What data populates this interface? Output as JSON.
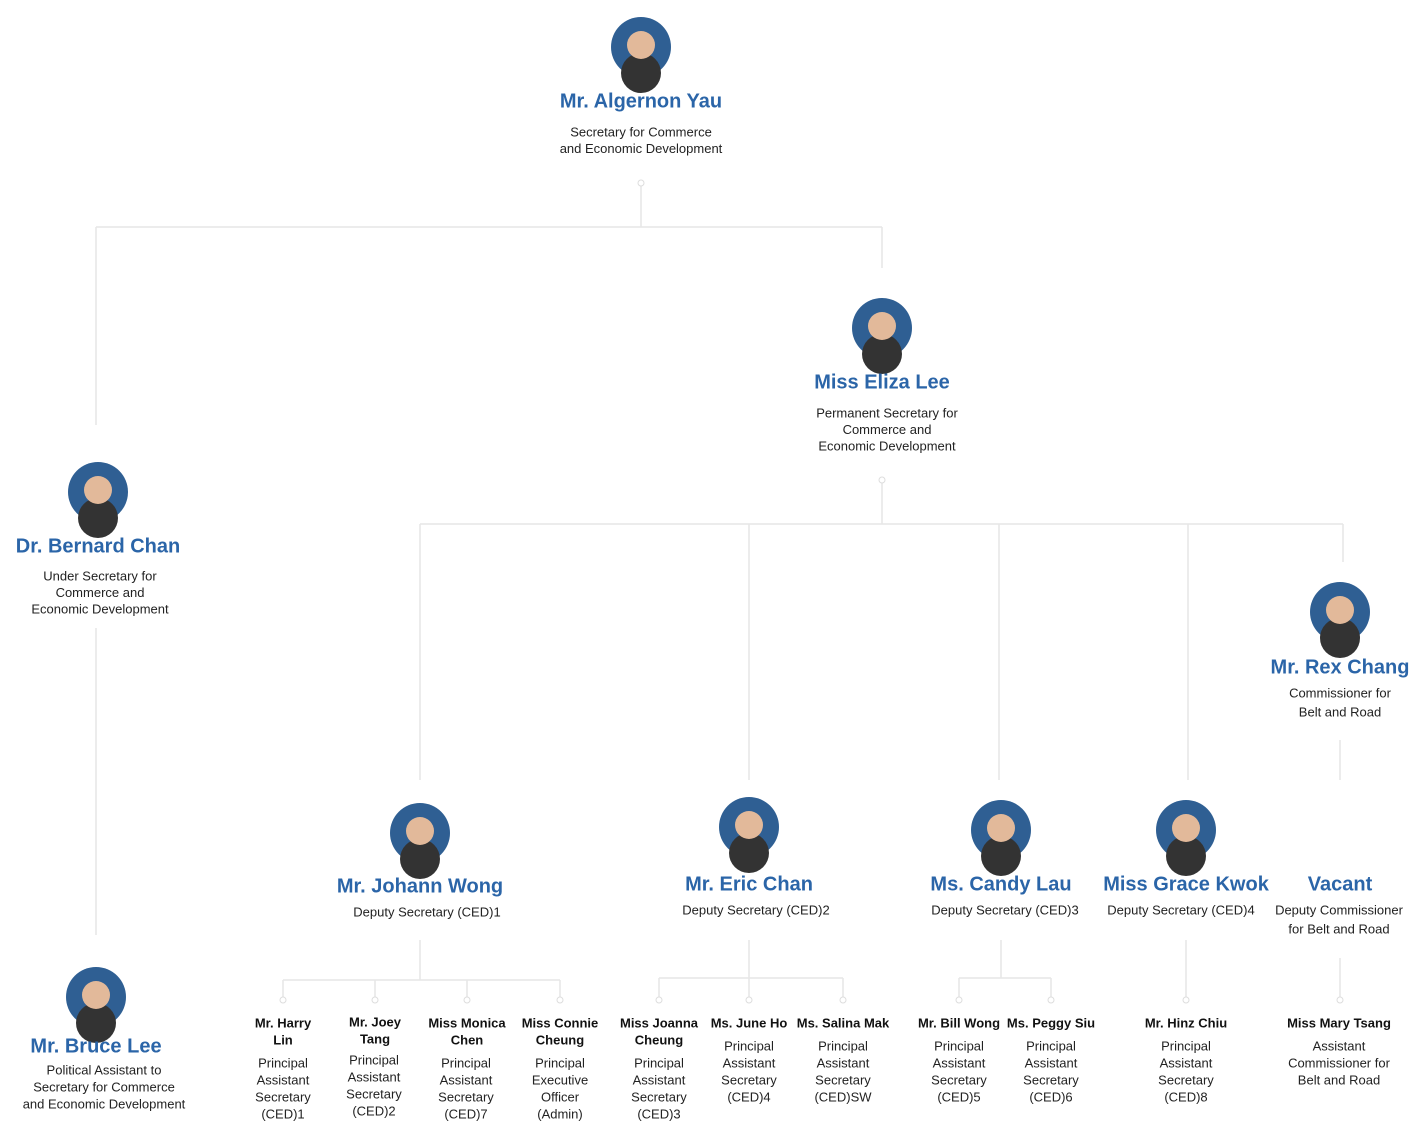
{
  "nodes": [
    {
      "name": [
        "Mr. Algernon Yau"
      ],
      "title": [
        "Secretary for Commerce",
        "and Economic Development"
      ]
    },
    {
      "name": [
        "Miss Eliza Lee"
      ],
      "title": [
        "Permanent Secretary for",
        "Commerce and",
        "Economic Development"
      ]
    },
    {
      "name": [
        "Dr. Bernard Chan"
      ],
      "title": [
        "Under Secretary for",
        "Commerce and",
        "Economic Development"
      ]
    },
    {
      "name": [
        "Mr. Bruce Lee"
      ],
      "title": [
        "Political Assistant to",
        "Secretary for Commerce",
        "and Economic Development"
      ]
    },
    {
      "name": [
        "Mr. Rex Chang"
      ],
      "title": [
        "Commissioner for",
        "Belt and Road"
      ]
    },
    {
      "name": [
        "Mr. Johann Wong"
      ],
      "title": [
        "Deputy Secretary (CED)1"
      ]
    },
    {
      "name": [
        "Mr. Eric Chan"
      ],
      "title": [
        "Deputy Secretary (CED)2"
      ]
    },
    {
      "name": [
        "Ms. Candy Lau"
      ],
      "title": [
        "Deputy Secretary (CED)3"
      ]
    },
    {
      "name": [
        "Miss Grace Kwok"
      ],
      "title": [
        "Deputy Secretary (CED)4"
      ]
    },
    {
      "name": [
        "Vacant"
      ],
      "title": [
        "Deputy Commissioner",
        "for Belt and Road"
      ]
    },
    {
      "name": [
        "Mr. Harry",
        "Lin"
      ],
      "title": [
        "Principal",
        "Assistant",
        "Secretary",
        "(CED)1"
      ]
    },
    {
      "name": [
        "Mr. Joey",
        "Tang"
      ],
      "title": [
        "Principal",
        "Assistant",
        "Secretary",
        "(CED)2"
      ]
    },
    {
      "name": [
        "Miss Monica",
        "Chen"
      ],
      "title": [
        "Principal",
        "Assistant",
        "Secretary",
        "(CED)7"
      ]
    },
    {
      "name": [
        "Miss Connie",
        "Cheung"
      ],
      "title": [
        "Principal",
        "Executive",
        "Officer",
        "(Admin)"
      ]
    },
    {
      "name": [
        "Miss Joanna",
        "Cheung"
      ],
      "title": [
        "Principal",
        "Assistant",
        "Secretary",
        "(CED)3"
      ]
    },
    {
      "name": [
        "Ms. June Ho"
      ],
      "title": [
        "Principal",
        "Assistant",
        "Secretary",
        "(CED)4"
      ]
    },
    {
      "name": [
        "Ms. Salina Mak"
      ],
      "title": [
        "Principal",
        "Assistant",
        "Secretary",
        "(CED)SW"
      ]
    },
    {
      "name": [
        "Mr. Bill Wong"
      ],
      "title": [
        "Principal",
        "Assistant",
        "Secretary",
        "(CED)5"
      ]
    },
    {
      "name": [
        "Ms. Peggy Siu"
      ],
      "title": [
        "Principal",
        "Assistant",
        "Secretary",
        "(CED)6"
      ]
    },
    {
      "name": [
        "Mr. Hinz Chiu"
      ],
      "title": [
        "Principal",
        "Assistant",
        "Secretary",
        "(CED)8"
      ]
    },
    {
      "name": [
        "Miss Mary Tsang"
      ],
      "title": [
        "Assistant",
        "Commissioner for",
        "Belt and Road"
      ]
    }
  ]
}
